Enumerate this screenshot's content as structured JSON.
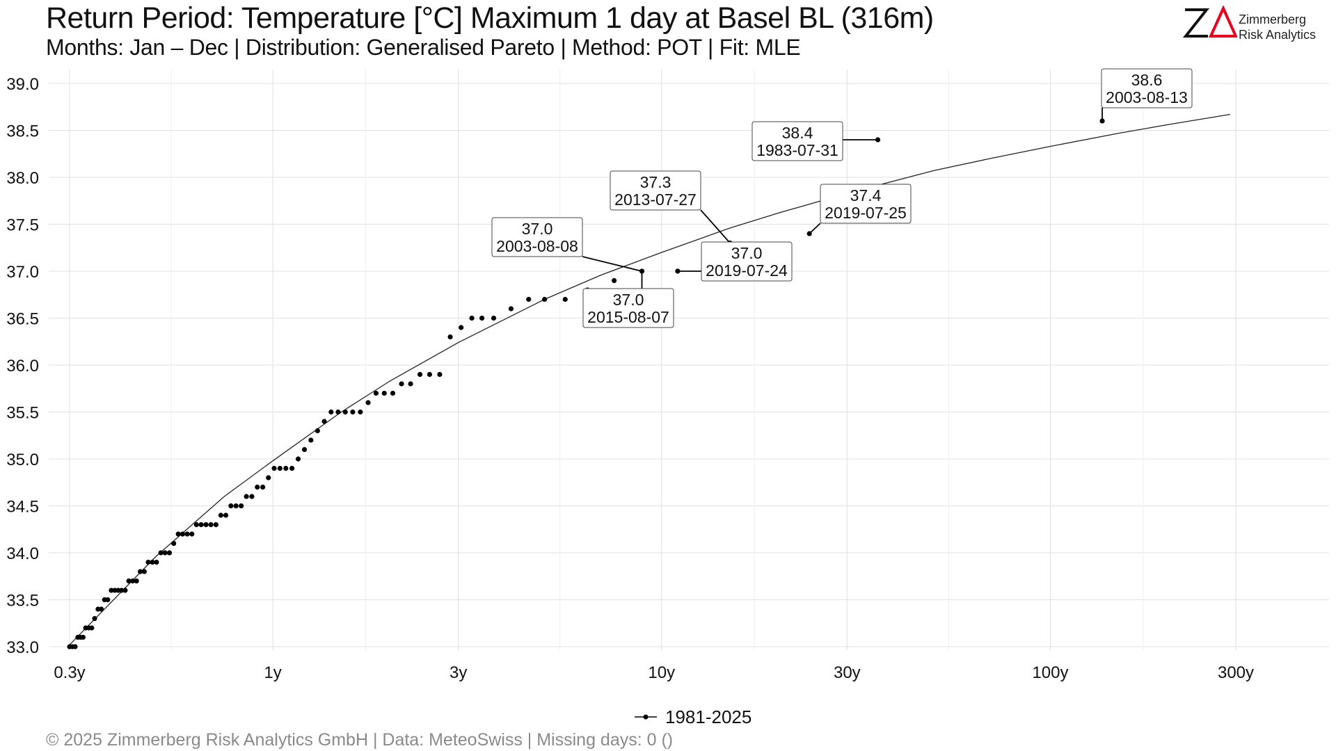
{
  "header": {
    "title": "Return Period: Temperature [°C] Maximum 1 day at Basel  BL (316m)",
    "subtitle": "Months: Jan – Dec | Distribution: Generalised Pareto | Method: POT | Fit: MLE"
  },
  "logo": {
    "mark": "ZΔ",
    "line1": "Zimmerberg",
    "line2": "Risk Analytics",
    "mark_color": "#e8001c"
  },
  "caption": "©  2025 Zimmerberg Risk Analytics GmbH | Data: MeteoSwiss | Missing days: 0 ()",
  "chart_data": {
    "type": "scatter",
    "x_scale": "log",
    "xlabel": "",
    "ylabel": "",
    "xlim": [
      0.3,
      500
    ],
    "ylim": [
      33.0,
      39.0
    ],
    "x_ticks": [
      0.3,
      1,
      3,
      10,
      30,
      100,
      300
    ],
    "x_tick_labels": [
      "0.3y",
      "1y",
      "3y",
      "10y",
      "30y",
      "100y",
      "300y"
    ],
    "y_ticks": [
      33.0,
      33.5,
      34.0,
      34.5,
      35.0,
      35.5,
      36.0,
      36.5,
      37.0,
      37.5,
      38.0,
      38.5,
      39.0
    ],
    "y_tick_labels": [
      "33.0",
      "33.5",
      "34.0",
      "34.5",
      "35.0",
      "35.5",
      "36.0",
      "36.5",
      "37.0",
      "37.5",
      "38.0",
      "38.5",
      "39.0"
    ],
    "grid": true,
    "legend_position": "bottom-center",
    "colors": {
      "points": "#000000",
      "fit_line": "#222222",
      "grid": "#e0e0e0"
    },
    "series": [
      {
        "name": "1981-2025",
        "points": [
          [
            0.3,
            33.0
          ],
          [
            0.305,
            33.0
          ],
          [
            0.31,
            33.0
          ],
          [
            0.315,
            33.1
          ],
          [
            0.32,
            33.1
          ],
          [
            0.325,
            33.1
          ],
          [
            0.33,
            33.2
          ],
          [
            0.336,
            33.2
          ],
          [
            0.342,
            33.2
          ],
          [
            0.348,
            33.3
          ],
          [
            0.355,
            33.4
          ],
          [
            0.362,
            33.4
          ],
          [
            0.369,
            33.5
          ],
          [
            0.376,
            33.5
          ],
          [
            0.384,
            33.6
          ],
          [
            0.392,
            33.6
          ],
          [
            0.4,
            33.6
          ],
          [
            0.408,
            33.6
          ],
          [
            0.417,
            33.6
          ],
          [
            0.426,
            33.7
          ],
          [
            0.436,
            33.7
          ],
          [
            0.446,
            33.7
          ],
          [
            0.456,
            33.8
          ],
          [
            0.467,
            33.8
          ],
          [
            0.478,
            33.9
          ],
          [
            0.49,
            33.9
          ],
          [
            0.502,
            33.9
          ],
          [
            0.515,
            34.0
          ],
          [
            0.528,
            34.0
          ],
          [
            0.542,
            34.0
          ],
          [
            0.556,
            34.1
          ],
          [
            0.571,
            34.2
          ],
          [
            0.586,
            34.2
          ],
          [
            0.602,
            34.2
          ],
          [
            0.619,
            34.2
          ],
          [
            0.636,
            34.3
          ],
          [
            0.654,
            34.3
          ],
          [
            0.673,
            34.3
          ],
          [
            0.693,
            34.3
          ],
          [
            0.714,
            34.3
          ],
          [
            0.735,
            34.4
          ],
          [
            0.757,
            34.4
          ],
          [
            0.78,
            34.5
          ],
          [
            0.804,
            34.5
          ],
          [
            0.829,
            34.5
          ],
          [
            0.855,
            34.6
          ],
          [
            0.883,
            34.6
          ],
          [
            0.912,
            34.7
          ],
          [
            0.942,
            34.7
          ],
          [
            0.974,
            34.8
          ],
          [
            1.008,
            34.9
          ],
          [
            1.043,
            34.9
          ],
          [
            1.08,
            34.9
          ],
          [
            1.12,
            34.9
          ],
          [
            1.162,
            35.0
          ],
          [
            1.206,
            35.1
          ],
          [
            1.253,
            35.2
          ],
          [
            1.303,
            35.3
          ],
          [
            1.356,
            35.4
          ],
          [
            1.412,
            35.5
          ],
          [
            1.472,
            35.5
          ],
          [
            1.536,
            35.5
          ],
          [
            1.605,
            35.5
          ],
          [
            1.679,
            35.5
          ],
          [
            1.758,
            35.6
          ],
          [
            1.843,
            35.7
          ],
          [
            1.935,
            35.7
          ],
          [
            2.035,
            35.7
          ],
          [
            2.143,
            35.8
          ],
          [
            2.261,
            35.8
          ],
          [
            2.39,
            35.9
          ],
          [
            2.531,
            35.9
          ],
          [
            2.687,
            35.9
          ],
          [
            2.86,
            36.3
          ],
          [
            3.05,
            36.4
          ],
          [
            3.25,
            36.5
          ],
          [
            3.45,
            36.5
          ],
          [
            3.7,
            36.5
          ],
          [
            4.1,
            36.6
          ],
          [
            4.55,
            36.7
          ],
          [
            5.0,
            36.7
          ],
          [
            5.65,
            36.7
          ],
          [
            6.45,
            36.8
          ],
          [
            7.55,
            36.9
          ],
          [
            8.9,
            37.0
          ],
          [
            11.0,
            37.0
          ],
          [
            13.2,
            37.0
          ],
          [
            15.0,
            37.3
          ],
          [
            24.0,
            37.4
          ],
          [
            36.0,
            38.4
          ],
          [
            136.0,
            38.6
          ]
        ]
      }
    ],
    "fit_curve": {
      "x": [
        0.3,
        0.5,
        0.75,
        1,
        1.5,
        2,
        3,
        5,
        7,
        10,
        15,
        20,
        30,
        50,
        70,
        100,
        150,
        200,
        290
      ],
      "y": [
        33.02,
        33.96,
        34.6,
        34.98,
        35.5,
        35.83,
        36.24,
        36.7,
        36.96,
        37.2,
        37.46,
        37.62,
        37.83,
        38.07,
        38.2,
        38.33,
        38.47,
        38.56,
        38.67
      ]
    },
    "annotations": [
      {
        "value": "38.6",
        "date": "2003-08-13"
      },
      {
        "value": "38.4",
        "date": "1983-07-31"
      },
      {
        "value": "37.3",
        "date": "2013-07-27"
      },
      {
        "value": "37.4",
        "date": "2019-07-25"
      },
      {
        "value": "37.0",
        "date": "2003-08-08"
      },
      {
        "value": "37.0",
        "date": "2019-07-24"
      },
      {
        "value": "37.0",
        "date": "2015-08-07"
      }
    ]
  }
}
